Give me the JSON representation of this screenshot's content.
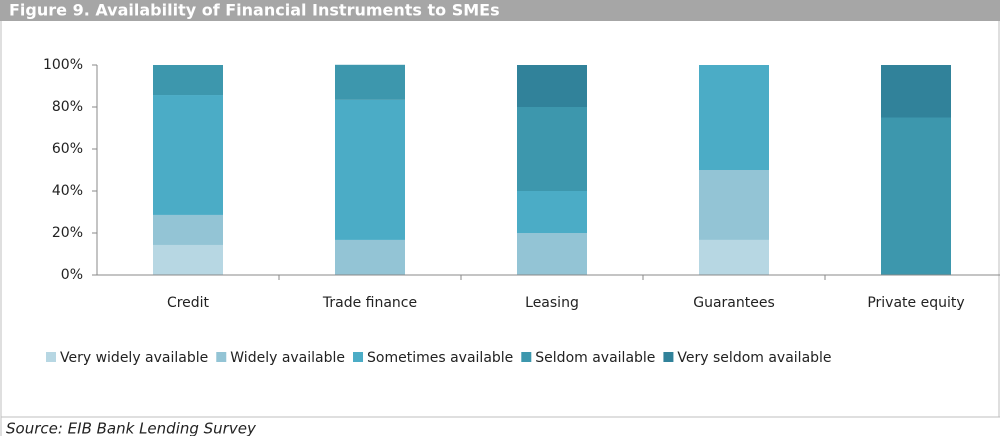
{
  "chart_data": {
    "type": "stacked_bar",
    "title": "Figure 9. Availability of Financial Instruments to SMEs",
    "categories": [
      "Credit",
      "Trade finance",
      "Leasing",
      "Guarantees",
      "Private equity"
    ],
    "series": [
      {
        "name": "Very widely available",
        "color": "#b7d7e3",
        "values": [
          14.3,
          0,
          0,
          16.7,
          0
        ]
      },
      {
        "name": "Widely available",
        "color": "#93c4d5",
        "values": [
          14.3,
          16.7,
          20,
          33.3,
          0
        ]
      },
      {
        "name": "Sometimes available",
        "color": "#4bacc6",
        "values": [
          57.1,
          66.7,
          20,
          50,
          0
        ]
      },
      {
        "name": "Seldom available",
        "color": "#3d97ad",
        "values": [
          14.3,
          16.7,
          40,
          0,
          75
        ]
      },
      {
        "name": "Very seldom available",
        "color": "#31829a",
        "values": [
          0,
          0,
          20,
          0,
          25
        ]
      }
    ],
    "ylim": [
      0,
      100
    ],
    "yticks": [
      {
        "value": 0,
        "label": "0%"
      },
      {
        "value": 20,
        "label": "20%"
      },
      {
        "value": 40,
        "label": "40%"
      },
      {
        "value": 60,
        "label": "60%"
      },
      {
        "value": 80,
        "label": "80%"
      },
      {
        "value": 100,
        "label": "100%"
      }
    ],
    "legend": "bottom",
    "source": "Source: EIB Bank Lending Survey"
  }
}
